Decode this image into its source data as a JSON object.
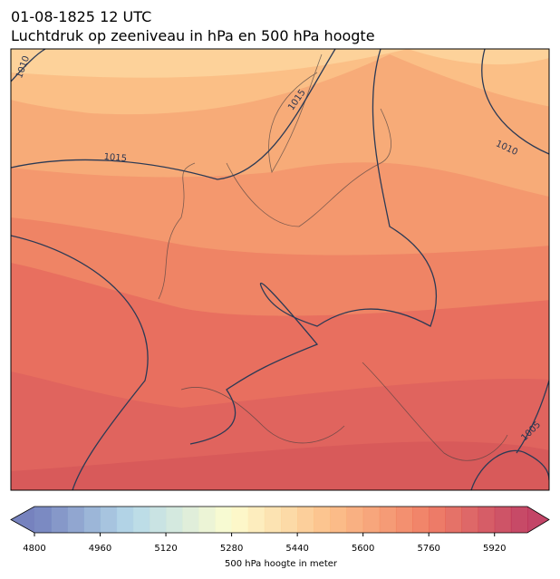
{
  "title": {
    "line1": "01-08-1825 12 UTC",
    "line2": "Luchtdruk op zeeniveau in hPa en 500 hPa hoogte"
  },
  "contour_labels": [
    "1010",
    "1015",
    "1015",
    "1010",
    "1005"
  ],
  "colorbar": {
    "label": "500 hPa hoogte in meter",
    "range": [
      4800,
      6000
    ],
    "ticks": [
      4800,
      4960,
      5120,
      5280,
      5440,
      5600,
      5760,
      5920
    ],
    "colormap": [
      "#5e6cb3",
      "#abd4e6",
      "#fdfcc7",
      "#fbb576",
      "#ee6a4d",
      "#b8244c"
    ]
  }
}
